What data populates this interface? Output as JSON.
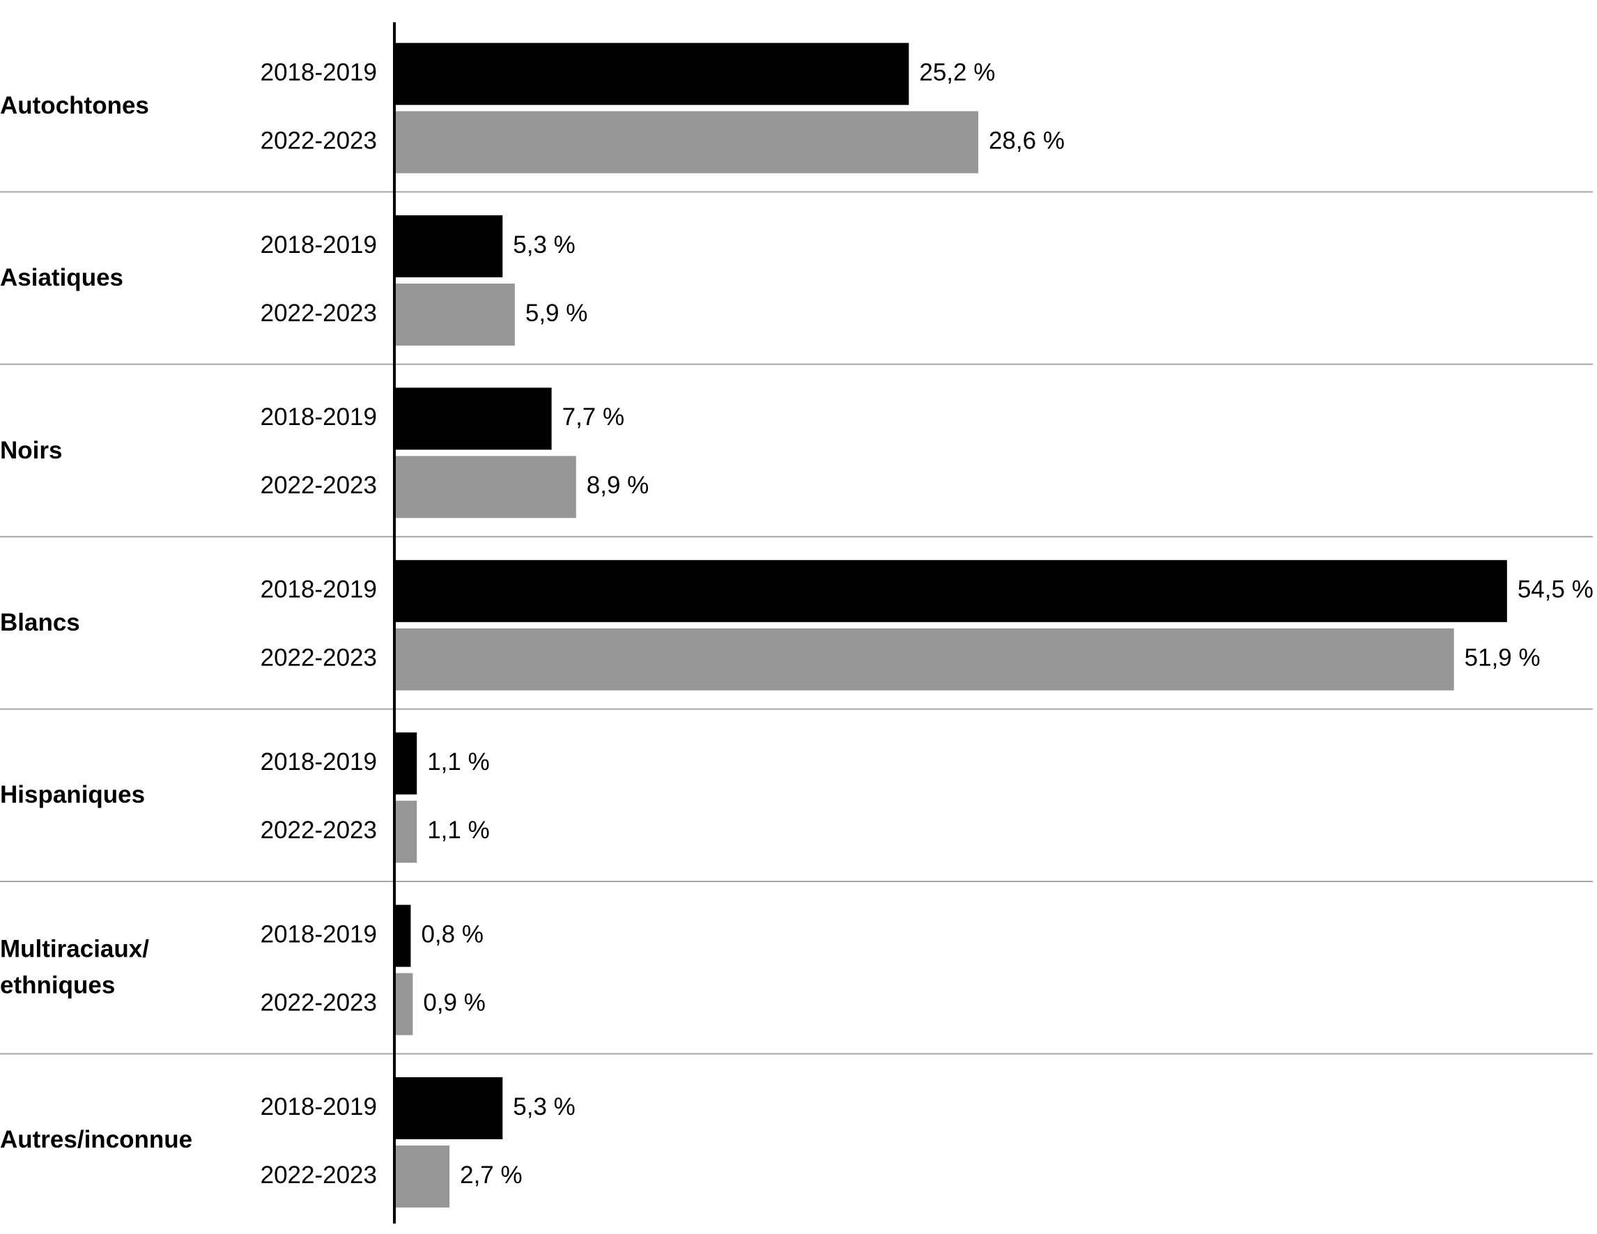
{
  "chart_data": {
    "type": "bar",
    "orientation": "horizontal",
    "categories": [
      "Autochtones",
      "Asiatiques",
      "Noirs",
      "Blancs",
      "Hispaniques",
      "Multiraciaux/ ethniques",
      "Autres/inconnue"
    ],
    "series": [
      {
        "name": "2018-2019",
        "color": "#000000",
        "values": [
          25.2,
          5.3,
          7.7,
          54.5,
          1.1,
          0.8,
          5.3
        ],
        "value_labels": [
          "25,2 %",
          "5,3 %",
          "7,7 %",
          "54,5 %",
          "1,1 %",
          "0,8 %",
          "5,3 %"
        ]
      },
      {
        "name": "2022-2023",
        "color": "#969696",
        "values": [
          28.6,
          5.9,
          8.9,
          51.9,
          1.1,
          0.9,
          2.7
        ],
        "value_labels": [
          "28,6 %",
          "5,9 %",
          "8,9 %",
          "51,9 %",
          "1,1 %",
          "0,9 %",
          "2,7 %"
        ]
      }
    ]
  }
}
